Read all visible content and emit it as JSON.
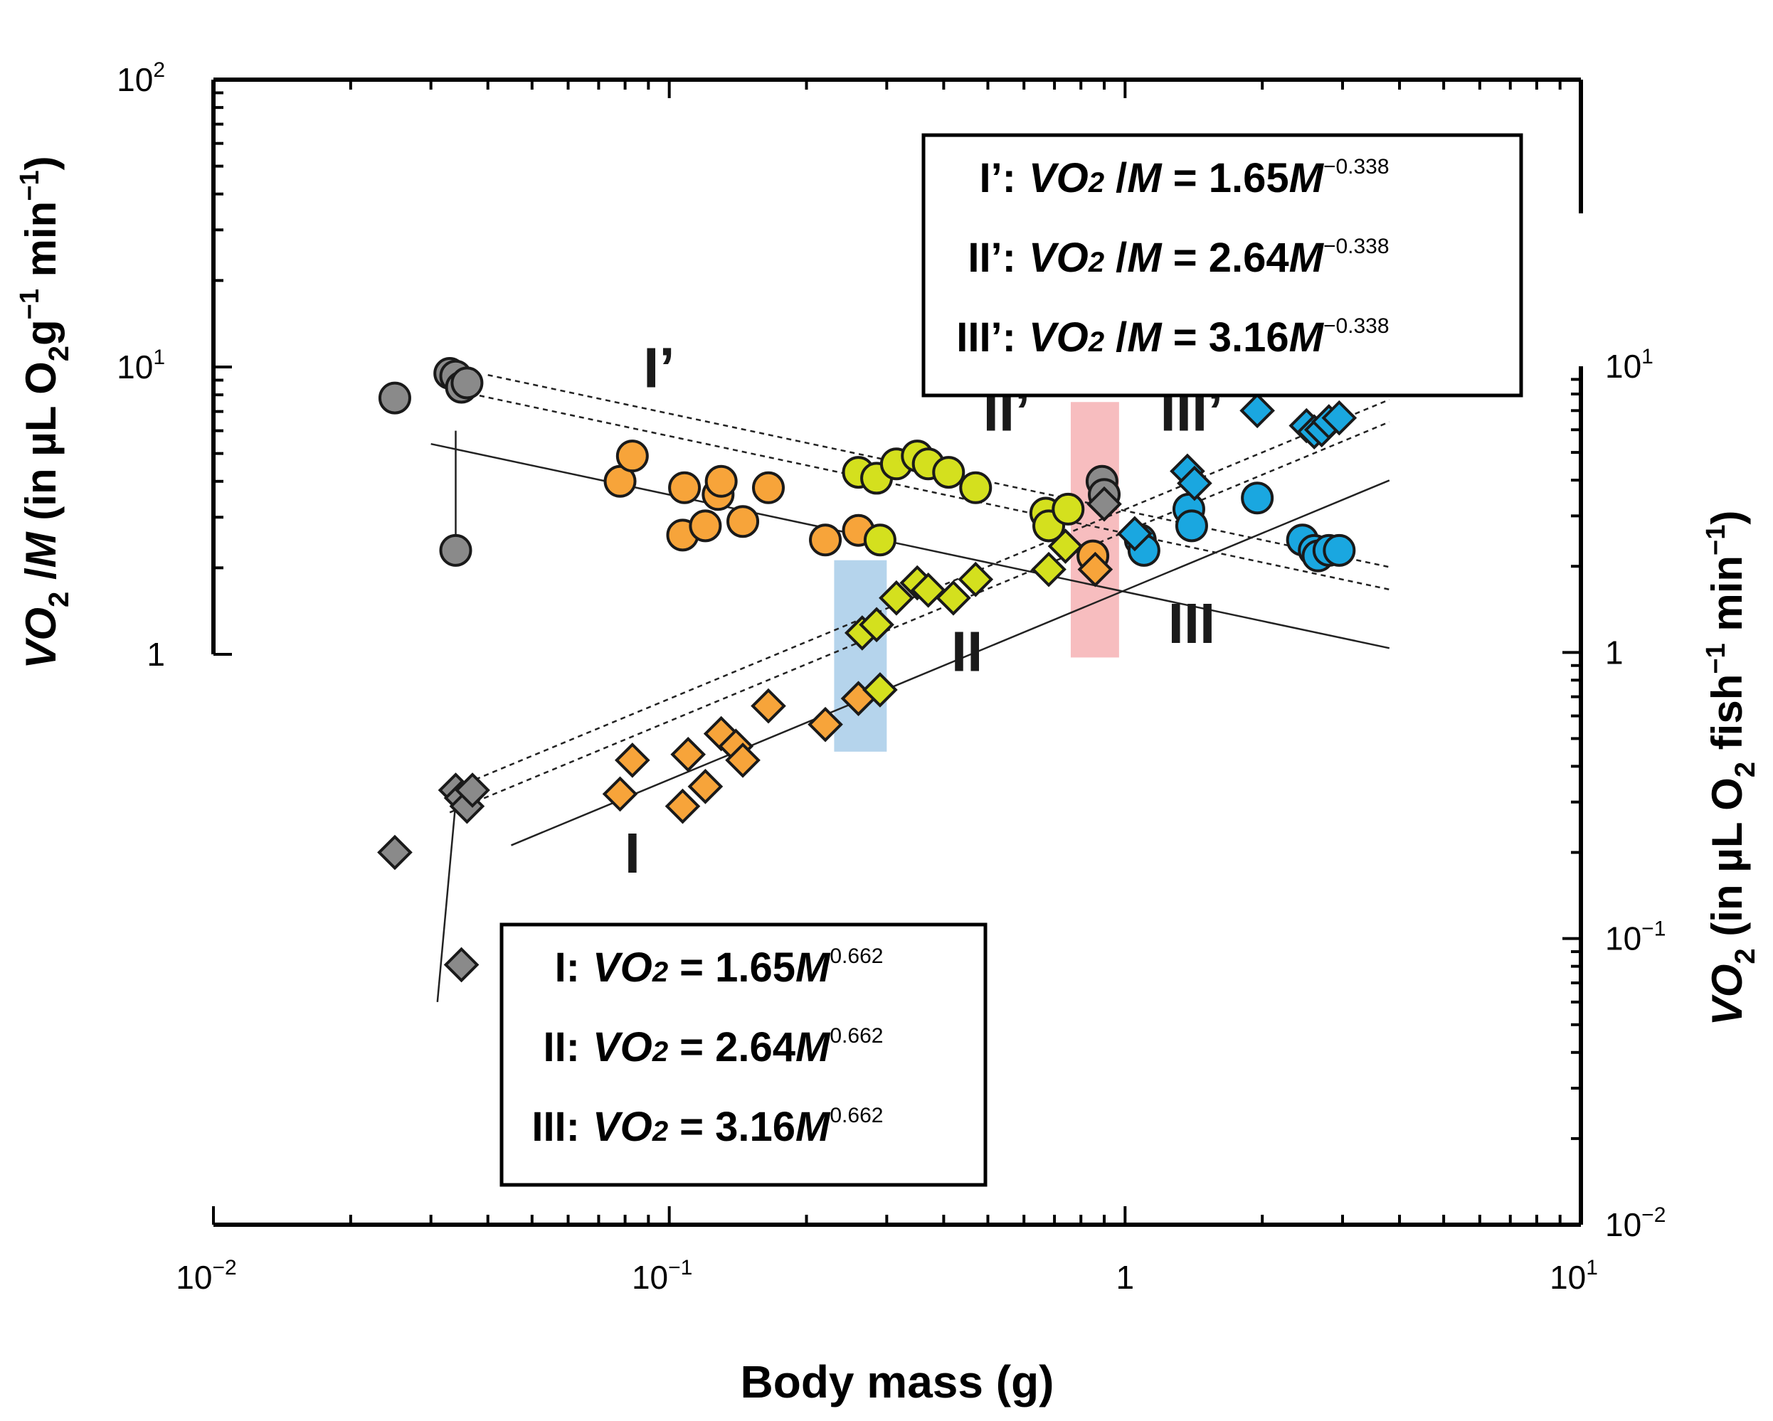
{
  "chart_data": {
    "type": "scatter",
    "scale": "log-log",
    "xlabel": "Body mass (g)",
    "ylabel_left_parts": [
      "VO",
      "2",
      " /",
      "M",
      " (in µL O",
      "2",
      "g",
      "−1",
      " min",
      "−1",
      ")"
    ],
    "ylabel_right_parts": [
      "VO",
      "2",
      " (in µL O",
      "2",
      " fish",
      "−1",
      " min",
      "−1",
      ")"
    ],
    "xlim": [
      0.01,
      10
    ],
    "ylim_left": [
      1,
      100
    ],
    "ylim_right": [
      0.01,
      10
    ],
    "x_ticks": [
      {
        "base": "10",
        "exp": "−2"
      },
      {
        "base": "10",
        "exp": "−1"
      },
      {
        "base": "1",
        "exp": ""
      },
      {
        "base": "10",
        "exp": "1"
      }
    ],
    "y_left_ticks": [
      {
        "base": "1",
        "exp": ""
      },
      {
        "base": "10",
        "exp": "1"
      },
      {
        "base": "10",
        "exp": "2"
      }
    ],
    "y_right_ticks": [
      {
        "base": "10",
        "exp": "−2"
      },
      {
        "base": "10",
        "exp": "−1"
      },
      {
        "base": "1",
        "exp": ""
      },
      {
        "base": "10",
        "exp": "1"
      }
    ],
    "colors": {
      "gray": "#8a8a8a",
      "orange": "#f7a43a",
      "yellow": "#d4e01e",
      "blue": "#1aa7e0",
      "blue_band": "#9cc6e6",
      "red_band": "#f4a7aa"
    },
    "bands": [
      {
        "name": "blue",
        "x0": 0.23,
        "x1": 0.3,
        "vo2_min": 0.45,
        "vo2_max": 2.1
      },
      {
        "name": "red",
        "x0": 0.76,
        "x1": 0.97,
        "vo2_min": 0.96,
        "vo2_max": 7.5
      }
    ],
    "labels": [
      {
        "text": "I’",
        "x": 0.095,
        "vo2m": 8.5
      },
      {
        "text": "II’",
        "x": 0.55,
        "vo2m": 6.0
      },
      {
        "text": "III’",
        "x": 1.4,
        "vo2m": 6.0
      },
      {
        "text": "I",
        "x": 0.083,
        "vo2": 0.17
      },
      {
        "text": "II",
        "x": 0.45,
        "vo2": 0.86
      },
      {
        "text": "III",
        "x": 1.4,
        "vo2": 1.08
      }
    ],
    "series": [
      {
        "name": "gray",
        "color": "gray",
        "points": [
          [
            0.025,
            7.8
          ],
          [
            0.033,
            9.5
          ],
          [
            0.034,
            9.3
          ],
          [
            0.035,
            8.5
          ],
          [
            0.036,
            8.8
          ],
          [
            0.034,
            2.3
          ]
        ]
      },
      {
        "name": "orange",
        "color": "orange",
        "points": [
          [
            0.078,
            4.0
          ],
          [
            0.083,
            4.9
          ],
          [
            0.107,
            2.6
          ],
          [
            0.108,
            3.8
          ],
          [
            0.12,
            2.8
          ],
          [
            0.128,
            3.6
          ],
          [
            0.13,
            4.0
          ],
          [
            0.145,
            2.9
          ],
          [
            0.165,
            3.8
          ],
          [
            0.22,
            2.5
          ],
          [
            0.26,
            2.7
          ]
        ]
      },
      {
        "name": "yellow",
        "color": "yellow",
        "points": [
          [
            0.26,
            4.3
          ],
          [
            0.285,
            4.1
          ],
          [
            0.29,
            2.5
          ],
          [
            0.315,
            4.6
          ],
          [
            0.35,
            4.9
          ],
          [
            0.37,
            4.6
          ],
          [
            0.41,
            4.3
          ],
          [
            0.47,
            3.8
          ],
          [
            0.67,
            3.1
          ],
          [
            0.68,
            2.8
          ],
          [
            0.75,
            3.2
          ]
        ]
      },
      {
        "name": "orange_red",
        "color": "orange",
        "points": [
          [
            0.85,
            2.2
          ]
        ]
      },
      {
        "name": "gray_red",
        "color": "gray",
        "points": [
          [
            0.89,
            4.0
          ],
          [
            0.9,
            3.6
          ]
        ]
      },
      {
        "name": "blue",
        "color": "blue",
        "points": [
          [
            1.08,
            2.5
          ],
          [
            1.1,
            2.3
          ],
          [
            1.38,
            3.2
          ],
          [
            1.4,
            2.8
          ],
          [
            1.95,
            3.5
          ],
          [
            2.45,
            2.5
          ],
          [
            2.6,
            2.3
          ],
          [
            2.65,
            2.2
          ],
          [
            2.8,
            2.3
          ],
          [
            2.95,
            2.3
          ]
        ]
      }
    ],
    "series_vo2": [
      {
        "name": "gray",
        "color": "gray",
        "points": [
          [
            0.025,
            0.2
          ],
          [
            0.034,
            0.33
          ],
          [
            0.035,
            0.31
          ],
          [
            0.036,
            0.29
          ],
          [
            0.037,
            0.33
          ],
          [
            0.035,
            0.081
          ]
        ]
      },
      {
        "name": "orange",
        "color": "orange",
        "points": [
          [
            0.078,
            0.32
          ],
          [
            0.083,
            0.42
          ],
          [
            0.107,
            0.29
          ],
          [
            0.11,
            0.44
          ],
          [
            0.12,
            0.34
          ],
          [
            0.13,
            0.52
          ],
          [
            0.14,
            0.47
          ],
          [
            0.145,
            0.42
          ],
          [
            0.165,
            0.65
          ],
          [
            0.22,
            0.56
          ],
          [
            0.26,
            0.69
          ]
        ]
      },
      {
        "name": "yellow",
        "color": "yellow",
        "points": [
          [
            0.265,
            1.17
          ],
          [
            0.285,
            1.25
          ],
          [
            0.29,
            0.74
          ],
          [
            0.315,
            1.55
          ],
          [
            0.35,
            1.75
          ],
          [
            0.37,
            1.65
          ],
          [
            0.42,
            1.55
          ],
          [
            0.47,
            1.8
          ],
          [
            0.68,
            1.95
          ],
          [
            0.74,
            2.35
          ]
        ]
      },
      {
        "name": "orange_red",
        "color": "orange",
        "points": [
          [
            0.86,
            1.95
          ]
        ]
      },
      {
        "name": "gray_red",
        "color": "gray",
        "points": [
          [
            0.9,
            3.3
          ]
        ]
      },
      {
        "name": "blue",
        "color": "blue",
        "points": [
          [
            1.05,
            2.6
          ],
          [
            1.37,
            4.3
          ],
          [
            1.42,
            3.9
          ],
          [
            1.95,
            7.0
          ],
          [
            2.5,
            6.2
          ],
          [
            2.6,
            5.9
          ],
          [
            2.7,
            6.0
          ],
          [
            2.8,
            6.4
          ],
          [
            2.95,
            6.6
          ]
        ]
      }
    ],
    "fit_lines": [
      {
        "name": "I'",
        "axis": "left",
        "coef": 1.65,
        "exp": -0.338,
        "x0": 0.03,
        "x1": 3.8,
        "style": "solid"
      },
      {
        "name": "II'",
        "axis": "left",
        "coef": 2.64,
        "exp": -0.338,
        "x0": 0.035,
        "x1": 3.8,
        "style": "dashed"
      },
      {
        "name": "III'",
        "axis": "left",
        "coef": 3.16,
        "exp": -0.338,
        "x0": 0.04,
        "x1": 3.8,
        "style": "dashed"
      },
      {
        "name": "I",
        "axis": "right",
        "coef": 1.65,
        "exp": 0.662,
        "x0": 0.045,
        "x1": 3.8,
        "style": "solid"
      },
      {
        "name": "II",
        "axis": "right",
        "coef": 2.64,
        "exp": 0.662,
        "x0": 0.033,
        "x1": 3.8,
        "style": "dashed"
      },
      {
        "name": "III",
        "axis": "right",
        "coef": 3.16,
        "exp": 0.662,
        "x0": 0.033,
        "x1": 3.8,
        "style": "dashed"
      }
    ],
    "gray_connectors": [
      {
        "axis": "left",
        "from": [
          0.034,
          6.0
        ],
        "to": [
          0.034,
          2.4
        ]
      },
      {
        "axis": "right",
        "from": [
          0.034,
          0.3
        ],
        "to": [
          0.031,
          0.06
        ]
      }
    ],
    "legend_top": {
      "position": "top-right",
      "rows": [
        {
          "label": "I’:",
          "lhs": "VO",
          "sub": "2",
          "mid": " /M",
          "eq": " = 1.65",
          "var": "M",
          "exp": "−0.338"
        },
        {
          "label": "II’:",
          "lhs": "VO",
          "sub": "2",
          "mid": " /M",
          "eq": " = 2.64",
          "var": "M",
          "exp": "−0.338"
        },
        {
          "label": "III’:",
          "lhs": "VO",
          "sub": "2",
          "mid": " /M",
          "eq": " = 3.16",
          "var": "M",
          "exp": "−0.338"
        }
      ]
    },
    "legend_bottom": {
      "position": "bottom-center",
      "rows": [
        {
          "label": "I:",
          "lhs": "VO",
          "sub": "2",
          "mid": "",
          "eq": " = 1.65",
          "var": "M",
          "exp": "0.662"
        },
        {
          "label": "II:",
          "lhs": "VO",
          "sub": "2",
          "mid": "",
          "eq": " = 2.64",
          "var": "M",
          "exp": "0.662"
        },
        {
          "label": "III:",
          "lhs": "VO",
          "sub": "2",
          "mid": "",
          "eq": " = 3.16",
          "var": "M",
          "exp": "0.662"
        }
      ]
    }
  }
}
